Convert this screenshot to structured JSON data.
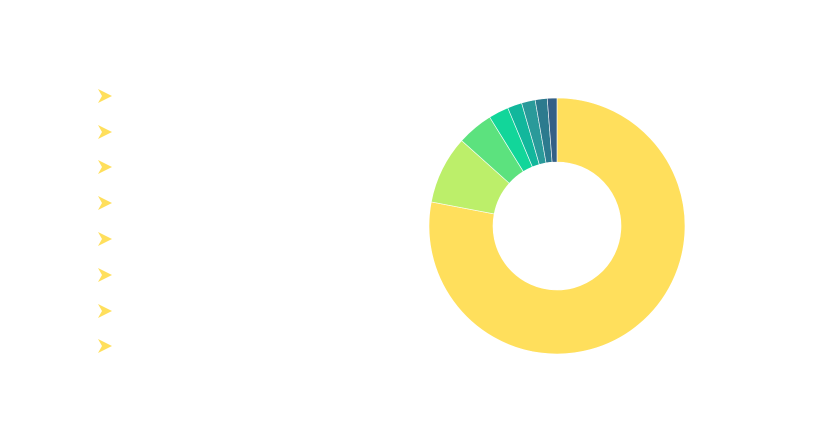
{
  "chart_data": {
    "type": "pie",
    "donut": true,
    "title": "",
    "legend_position": "left",
    "slices": [
      {
        "name": "",
        "value": 77.0,
        "color": "#FFDF5C"
      },
      {
        "name": "",
        "value": 8.5,
        "color": "#BCEF6A"
      },
      {
        "name": "",
        "value": 4.5,
        "color": "#5CE27E"
      },
      {
        "name": "",
        "value": 2.5,
        "color": "#12D69A"
      },
      {
        "name": "",
        "value": 1.8,
        "color": "#12B79C"
      },
      {
        "name": "",
        "value": 1.7,
        "color": "#2A9A9A"
      },
      {
        "name": "",
        "value": 1.5,
        "color": "#2C7A8E"
      },
      {
        "name": "",
        "value": 1.2,
        "color": "#345F86"
      }
    ]
  },
  "legend": {
    "marker_icon": "chevron-arrow-icon",
    "marker_color": "#FFDF5C"
  }
}
